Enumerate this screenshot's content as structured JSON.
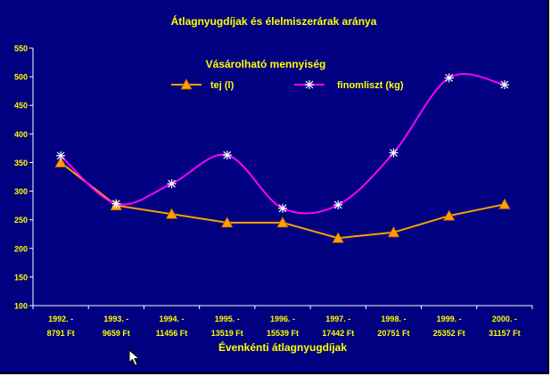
{
  "chart_data": {
    "type": "line",
    "title": "Átlagnyugdíjak és élelmiszerárak aránya",
    "xlabel": "Évenkénti átlagnyugdíjak",
    "ylabel": "",
    "categories": [
      [
        "1992. -",
        "8791 Ft"
      ],
      [
        "1993. -",
        "9659 Ft"
      ],
      [
        "1994. -",
        "11456 Ft"
      ],
      [
        "1995. -",
        "13519 Ft"
      ],
      [
        "1996. -",
        "15539 Ft"
      ],
      [
        "1997. -",
        "17442 Ft"
      ],
      [
        "1998. -",
        "20751 Ft"
      ],
      [
        "1999. -",
        "25352 Ft"
      ],
      [
        "2000. -",
        "31157 Ft"
      ]
    ],
    "ylim": [
      100,
      550
    ],
    "yticks": [
      100,
      150,
      200,
      250,
      300,
      350,
      400,
      450,
      500,
      550
    ],
    "legend": {
      "title": "Vásárolható mennyiség",
      "position": "top-center"
    },
    "grid": false,
    "series": [
      {
        "name": "tej (l)",
        "color": "#ffa000",
        "marker": "triangle",
        "smooth": false,
        "values": [
          350,
          275,
          260,
          245,
          245,
          218,
          228,
          257,
          277
        ]
      },
      {
        "name": "finomliszt (kg)",
        "color": "#ff00ff",
        "marker": "asterisk",
        "smooth": true,
        "values": [
          362,
          278,
          313,
          363,
          270,
          276,
          367,
          498,
          486
        ]
      }
    ]
  },
  "colors": {
    "background": "#000080",
    "text": "#ffff00"
  }
}
